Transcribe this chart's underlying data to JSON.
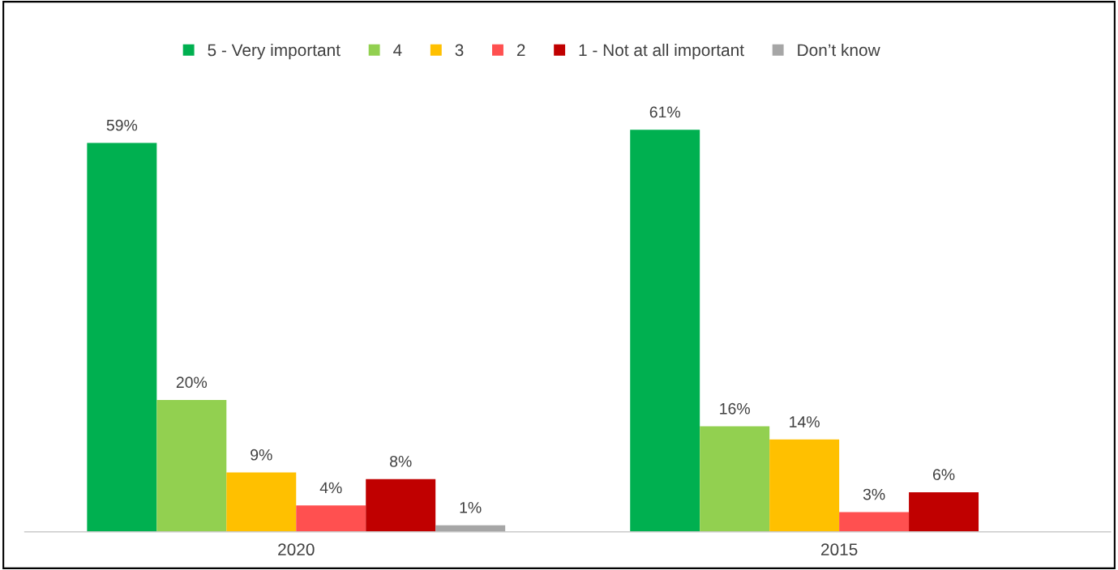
{
  "chart_data": {
    "type": "bar",
    "categories": [
      "2020",
      "2015"
    ],
    "legend": "top",
    "grid": false,
    "series": [
      {
        "name": "5 - Very important",
        "color": "#00b050",
        "values": [
          59,
          61
        ],
        "value_labels": [
          "59%",
          "61%"
        ]
      },
      {
        "name": "4",
        "color": "#92d050",
        "values": [
          20,
          16
        ],
        "value_labels": [
          "20%",
          "16%"
        ]
      },
      {
        "name": "3",
        "color": "#ffc000",
        "values": [
          9,
          14
        ],
        "value_labels": [
          "9%",
          "14%"
        ]
      },
      {
        "name": "2",
        "color": "#ff5050",
        "values": [
          4,
          3
        ],
        "value_labels": [
          "4%",
          "3%"
        ]
      },
      {
        "name": "1 - Not at all important",
        "color": "#c00000",
        "values": [
          8,
          6
        ],
        "value_labels": [
          "8%",
          "6%"
        ]
      },
      {
        "name": "Don’t know",
        "color": "#a6a6a6",
        "values": [
          1,
          null
        ],
        "value_labels": [
          "1%",
          null
        ]
      }
    ]
  }
}
